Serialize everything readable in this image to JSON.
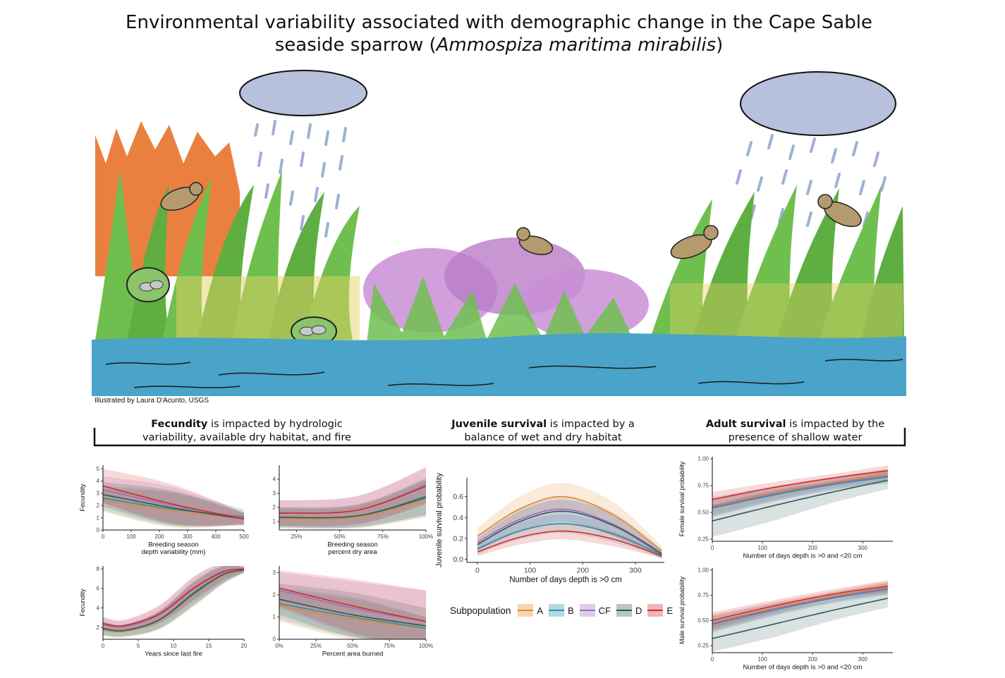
{
  "title": {
    "main": "Environmental variability associated with demographic change in the Cape Sable seaside sparrow (",
    "species": "Ammospiza maritima mirabilis",
    "close": ")"
  },
  "credit": "Illustrated by Laura D'Acunto, USGS",
  "captions": {
    "fecundity": {
      "bold": "Fecundity",
      "rest": " is impacted by hydrologic variability, available dry habitat, and fire"
    },
    "juvenile": {
      "bold": "Juvenile survival",
      "rest": " is impacted by a balance of wet and dry habitat"
    },
    "adult": {
      "bold": "Adult survival",
      "rest": " is impacted by the presence of shallow water"
    }
  },
  "colors": {
    "A": "#e08a2c",
    "B": "#2a93a6",
    "CF": "#a06cc0",
    "D": "#2f5a5a",
    "E": "#d42a2a",
    "water": "#4aa3c8",
    "grass": "#6fbf4f",
    "fire": "#e8722a",
    "flower": "#c98fd6",
    "cloud": "#b7c0dc"
  },
  "legend": {
    "title": "Subpopulation",
    "items": [
      {
        "label": "A",
        "key": "A"
      },
      {
        "label": "B",
        "key": "B"
      },
      {
        "label": "CF",
        "key": "CF"
      },
      {
        "label": "D",
        "key": "D"
      },
      {
        "label": "E",
        "key": "E"
      }
    ]
  },
  "chart_data": [
    {
      "id": "p1",
      "type": "line",
      "title": "",
      "xlabel": "Breeding season\ndepth variability (mm)",
      "ylabel": "Fecundity",
      "xlim": [
        0,
        500
      ],
      "ylim": [
        0,
        5.3
      ],
      "xticks": [
        0,
        100,
        200,
        300,
        400,
        500
      ],
      "xticklabels": [
        "0",
        "100",
        "200",
        "300",
        "400",
        "500"
      ],
      "yticks": [
        0,
        1,
        2,
        3,
        4,
        5
      ],
      "yticklabels": [
        "0",
        "1",
        "2",
        "3",
        "4",
        "5"
      ],
      "series": [
        {
          "name": "A",
          "x": [
            0,
            250,
            500
          ],
          "y": [
            2.4,
            1.6,
            0.9
          ],
          "band": [
            0.9,
            1.4,
            0.5
          ]
        },
        {
          "name": "B",
          "x": [
            0,
            250,
            500
          ],
          "y": [
            2.6,
            1.7,
            1.1
          ],
          "band": [
            1.0,
            1.4,
            0.6
          ]
        },
        {
          "name": "CF",
          "x": [
            0,
            250,
            500
          ],
          "y": [
            3.3,
            2.0,
            1.0
          ],
          "band": [
            1.1,
            1.5,
            0.5
          ]
        },
        {
          "name": "D",
          "x": [
            0,
            250,
            500
          ],
          "y": [
            2.9,
            1.8,
            0.9
          ],
          "band": [
            1.0,
            1.4,
            0.5
          ]
        },
        {
          "name": "E",
          "x": [
            0,
            250,
            500
          ],
          "y": [
            3.6,
            2.1,
            0.9
          ],
          "band": [
            1.4,
            1.6,
            0.5
          ]
        }
      ]
    },
    {
      "id": "p2",
      "type": "line",
      "title": "",
      "xlabel": "Breeding season\npercent dry area",
      "ylabel": "",
      "xlim": [
        0.15,
        1.0
      ],
      "ylim": [
        0.4,
        5
      ],
      "xticks": [
        0.25,
        0.5,
        0.75,
        1.0
      ],
      "xticklabels": [
        "25%",
        "50%",
        "75%",
        "100%"
      ],
      "yticks": [
        1,
        2,
        3,
        4
      ],
      "yticklabels": [
        "1",
        "2",
        "3",
        "4"
      ],
      "series": [
        {
          "name": "A",
          "x": [
            0.15,
            0.6,
            1.0
          ],
          "y": [
            1.2,
            1.3,
            2.6
          ],
          "band": [
            0.7,
            0.8,
            1.3
          ]
        },
        {
          "name": "B",
          "x": [
            0.15,
            0.6,
            1.0
          ],
          "y": [
            1.3,
            1.4,
            2.8
          ],
          "band": [
            0.7,
            0.8,
            1.3
          ]
        },
        {
          "name": "CF",
          "x": [
            0.15,
            0.6,
            1.0
          ],
          "y": [
            1.6,
            1.8,
            3.6
          ],
          "band": [
            0.9,
            1.0,
            1.3
          ]
        },
        {
          "name": "D",
          "x": [
            0.15,
            0.6,
            1.0
          ],
          "y": [
            1.3,
            1.4,
            2.7
          ],
          "band": [
            0.7,
            0.8,
            1.3
          ]
        },
        {
          "name": "E",
          "x": [
            0.15,
            0.6,
            1.0
          ],
          "y": [
            1.6,
            1.8,
            3.5
          ],
          "band": [
            0.9,
            1.0,
            1.3
          ]
        }
      ]
    },
    {
      "id": "p3",
      "type": "line",
      "title": "",
      "xlabel": "Years since last fire",
      "ylabel": "Fecundity",
      "xlim": [
        0,
        20
      ],
      "ylim": [
        0.8,
        8.3
      ],
      "xticks": [
        0,
        5,
        10,
        15,
        20
      ],
      "xticklabels": [
        "0",
        "5",
        "10",
        "15",
        "20"
      ],
      "yticks": [
        2,
        4,
        6,
        8
      ],
      "yticklabels": [
        "2",
        "4",
        "6",
        "8"
      ],
      "series": [
        {
          "name": "A",
          "x": [
            0,
            3,
            8,
            13,
            17,
            20
          ],
          "y": [
            1.8,
            1.6,
            2.7,
            5.4,
            7.3,
            7.9
          ],
          "band": [
            0.7,
            0.6,
            0.9,
            1.2,
            0.9,
            0.3
          ]
        },
        {
          "name": "B",
          "x": [
            0,
            3,
            8,
            13,
            17,
            20
          ],
          "y": [
            1.9,
            1.7,
            2.8,
            5.5,
            7.4,
            7.9
          ],
          "band": [
            0.7,
            0.6,
            0.9,
            1.2,
            0.9,
            0.3
          ]
        },
        {
          "name": "CF",
          "x": [
            0,
            3,
            8,
            13,
            17,
            20
          ],
          "y": [
            2.3,
            2.1,
            3.3,
            6.0,
            7.6,
            8.0
          ],
          "band": [
            0.7,
            0.6,
            0.9,
            1.2,
            0.9,
            0.3
          ]
        },
        {
          "name": "D",
          "x": [
            0,
            3,
            8,
            13,
            17,
            20
          ],
          "y": [
            1.9,
            1.7,
            2.8,
            5.6,
            7.4,
            7.9
          ],
          "band": [
            0.7,
            0.6,
            0.9,
            1.2,
            0.9,
            0.3
          ]
        },
        {
          "name": "E",
          "x": [
            0,
            3,
            8,
            13,
            17,
            20
          ],
          "y": [
            2.4,
            2.2,
            3.4,
            6.1,
            7.7,
            8.0
          ],
          "band": [
            0.7,
            0.6,
            0.9,
            1.2,
            0.9,
            0.3
          ]
        }
      ]
    },
    {
      "id": "p4",
      "type": "line",
      "title": "",
      "xlabel": "Percent area burned",
      "ylabel": "",
      "xlim": [
        0,
        1.0
      ],
      "ylim": [
        0,
        3.3
      ],
      "xticks": [
        0,
        0.25,
        0.5,
        0.75,
        1.0
      ],
      "xticklabels": [
        "0%",
        "25%",
        "50%",
        "75%",
        "100%"
      ],
      "yticks": [
        0,
        1,
        2,
        3
      ],
      "yticklabels": [
        "0",
        "1",
        "2",
        "3"
      ],
      "series": [
        {
          "name": "A",
          "x": [
            0,
            0.5,
            1.0
          ],
          "y": [
            1.5,
            0.9,
            0.5
          ],
          "band": [
            0.7,
            0.9,
            0.5
          ]
        },
        {
          "name": "B",
          "x": [
            0,
            0.5,
            1.0
          ],
          "y": [
            1.6,
            1.0,
            0.5
          ],
          "band": [
            0.7,
            0.9,
            0.5
          ]
        },
        {
          "name": "CF",
          "x": [
            0,
            0.5,
            1.0
          ],
          "y": [
            2.2,
            1.4,
            0.8
          ],
          "band": [
            0.8,
            1.2,
            1.4
          ]
        },
        {
          "name": "D",
          "x": [
            0,
            0.5,
            1.0
          ],
          "y": [
            1.8,
            1.1,
            0.6
          ],
          "band": [
            0.7,
            1.0,
            0.8
          ]
        },
        {
          "name": "E",
          "x": [
            0,
            0.5,
            1.0
          ],
          "y": [
            2.3,
            1.5,
            0.8
          ],
          "band": [
            0.8,
            1.2,
            1.4
          ]
        }
      ]
    },
    {
      "id": "p5",
      "type": "line",
      "title": "",
      "xlabel": "Number of days depth is >0 cm",
      "ylabel": "Juvenile survival probability",
      "xlim": [
        -20,
        355
      ],
      "ylim": [
        -0.03,
        0.78
      ],
      "xticks": [
        0,
        100,
        200,
        300
      ],
      "xticklabels": [
        "0",
        "100",
        "200",
        "300"
      ],
      "yticks": [
        0,
        0.2,
        0.4,
        0.6
      ],
      "yticklabels": [
        "0.0",
        "0.2",
        "0.4",
        "0.6"
      ],
      "series": [
        {
          "name": "A",
          "x": [
            0,
            80,
            165,
            260,
            350
          ],
          "y": [
            0.22,
            0.48,
            0.6,
            0.42,
            0.08
          ],
          "band": [
            0.08,
            0.12,
            0.13,
            0.12,
            0.05
          ]
        },
        {
          "name": "B",
          "x": [
            0,
            80,
            165,
            260,
            350
          ],
          "y": [
            0.1,
            0.27,
            0.34,
            0.24,
            0.04
          ],
          "band": [
            0.05,
            0.08,
            0.09,
            0.08,
            0.03
          ]
        },
        {
          "name": "CF",
          "x": [
            0,
            80,
            165,
            260,
            350
          ],
          "y": [
            0.16,
            0.38,
            0.48,
            0.33,
            0.06
          ],
          "band": [
            0.07,
            0.11,
            0.12,
            0.11,
            0.04
          ]
        },
        {
          "name": "D",
          "x": [
            0,
            80,
            165,
            260,
            350
          ],
          "y": [
            0.14,
            0.36,
            0.46,
            0.32,
            0.05
          ],
          "band": [
            0.06,
            0.1,
            0.11,
            0.1,
            0.04
          ]
        },
        {
          "name": "E",
          "x": [
            0,
            80,
            165,
            260,
            350
          ],
          "y": [
            0.07,
            0.21,
            0.27,
            0.19,
            0.03
          ],
          "band": [
            0.04,
            0.07,
            0.08,
            0.07,
            0.02
          ]
        }
      ]
    },
    {
      "id": "p6",
      "type": "line",
      "title": "",
      "xlabel": "Number of days depth is >0 and <20 cm",
      "ylabel": "Female survival probability",
      "xlim": [
        0,
        360
      ],
      "ylim": [
        0.23,
        1.02
      ],
      "xticks": [
        0,
        100,
        200,
        300
      ],
      "xticklabels": [
        "0",
        "100",
        "200",
        "300"
      ],
      "yticks": [
        0.25,
        0.5,
        0.75,
        1.0
      ],
      "yticklabels": [
        "0.25",
        "0.50",
        "0.75",
        "1.00"
      ],
      "series": [
        {
          "name": "A",
          "x": [
            0,
            120,
            240,
            350
          ],
          "y": [
            0.56,
            0.68,
            0.78,
            0.85
          ],
          "band": [
            0.08,
            0.06,
            0.05,
            0.06
          ]
        },
        {
          "name": "B",
          "x": [
            0,
            120,
            240,
            350
          ],
          "y": [
            0.54,
            0.66,
            0.76,
            0.83
          ],
          "band": [
            0.08,
            0.06,
            0.05,
            0.06
          ]
        },
        {
          "name": "CF",
          "x": [
            0,
            120,
            240,
            350
          ],
          "y": [
            0.55,
            0.67,
            0.77,
            0.84
          ],
          "band": [
            0.09,
            0.07,
            0.06,
            0.06
          ]
        },
        {
          "name": "D",
          "x": [
            0,
            120,
            240,
            350
          ],
          "y": [
            0.42,
            0.56,
            0.69,
            0.8
          ],
          "band": [
            0.15,
            0.14,
            0.1,
            0.08
          ]
        },
        {
          "name": "E",
          "x": [
            0,
            120,
            240,
            350
          ],
          "y": [
            0.62,
            0.73,
            0.82,
            0.89
          ],
          "band": [
            0.07,
            0.05,
            0.04,
            0.05
          ]
        }
      ]
    },
    {
      "id": "p7",
      "type": "line",
      "title": "",
      "xlabel": "Number of days depth is >0 and <20 cm",
      "ylabel": "Male survival probability",
      "xlim": [
        0,
        360
      ],
      "ylim": [
        0.18,
        1.02
      ],
      "xticks": [
        0,
        100,
        200,
        300
      ],
      "xticklabels": [
        "0",
        "100",
        "200",
        "300"
      ],
      "yticks": [
        0.25,
        0.5,
        0.75,
        1.0
      ],
      "yticklabels": [
        "0.25",
        "0.50",
        "0.75",
        "1.00"
      ],
      "series": [
        {
          "name": "A",
          "x": [
            0,
            120,
            240,
            350
          ],
          "y": [
            0.48,
            0.62,
            0.74,
            0.83
          ],
          "band": [
            0.08,
            0.06,
            0.05,
            0.06
          ]
        },
        {
          "name": "B",
          "x": [
            0,
            120,
            240,
            350
          ],
          "y": [
            0.46,
            0.6,
            0.72,
            0.81
          ],
          "band": [
            0.08,
            0.06,
            0.05,
            0.06
          ]
        },
        {
          "name": "CF",
          "x": [
            0,
            120,
            240,
            350
          ],
          "y": [
            0.47,
            0.61,
            0.73,
            0.82
          ],
          "band": [
            0.08,
            0.06,
            0.05,
            0.06
          ]
        },
        {
          "name": "D",
          "x": [
            0,
            120,
            240,
            350
          ],
          "y": [
            0.32,
            0.46,
            0.6,
            0.72
          ],
          "band": [
            0.13,
            0.13,
            0.1,
            0.09
          ]
        },
        {
          "name": "E",
          "x": [
            0,
            120,
            240,
            350
          ],
          "y": [
            0.5,
            0.64,
            0.76,
            0.84
          ],
          "band": [
            0.08,
            0.06,
            0.05,
            0.06
          ]
        }
      ]
    }
  ]
}
